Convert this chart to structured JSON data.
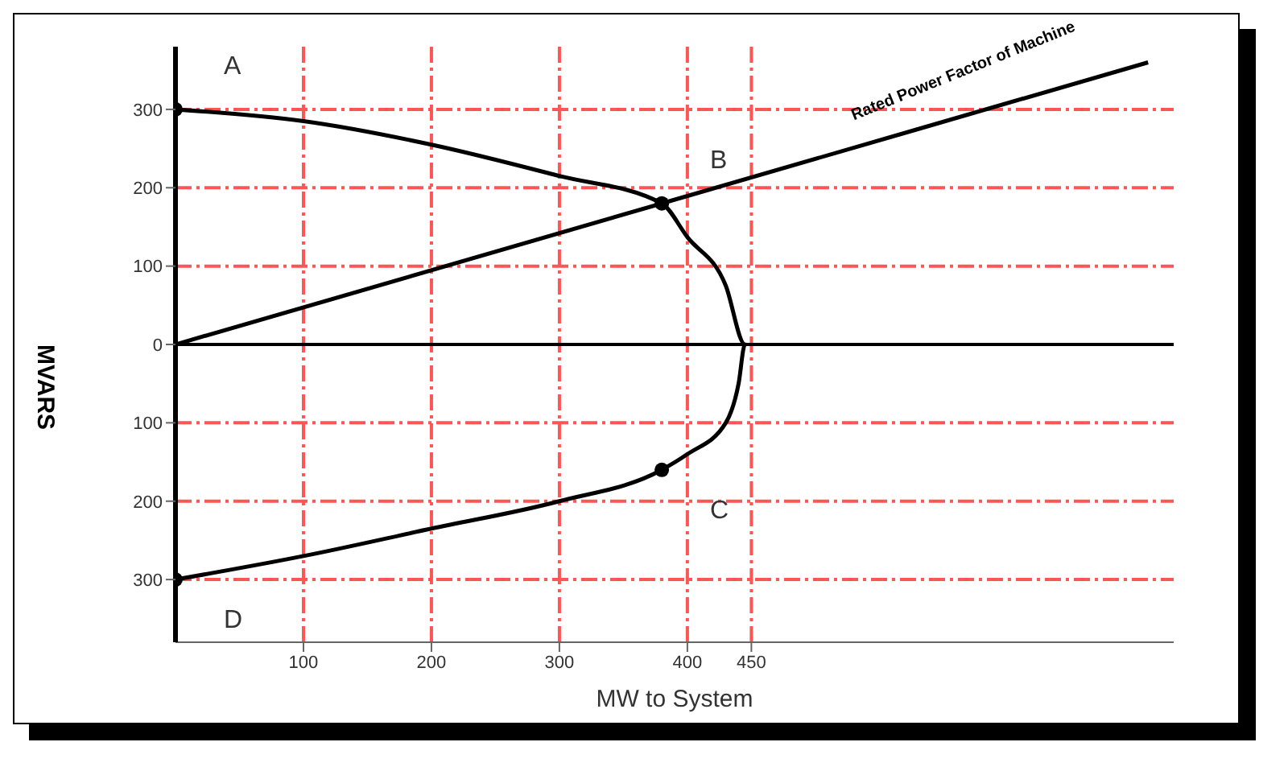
{
  "chart_data": {
    "type": "line",
    "xlabel": "MW to System",
    "ylabel": "MVARS",
    "xlim": [
      0,
      780
    ],
    "ylim": [
      -380,
      380
    ],
    "xticks": [
      100,
      200,
      300,
      400,
      450
    ],
    "yticks": [
      {
        "value": -300,
        "label": "300"
      },
      {
        "value": -200,
        "label": "200"
      },
      {
        "value": -100,
        "label": "100"
      },
      0,
      100,
      200,
      300
    ],
    "grid": true,
    "marker": "none",
    "line_style": "solid",
    "series": [
      {
        "color": "#000000",
        "x": [
          0,
          100,
          200,
          300,
          380,
          400,
          430,
          445,
          440,
          430,
          400,
          380,
          300,
          200,
          100,
          0
        ],
        "values": [
          300,
          285,
          255,
          215,
          180,
          137,
          75,
          0,
          -50,
          -100,
          -140,
          -160,
          -200,
          -235,
          -270,
          -300
        ]
      },
      {
        "color": "#000000",
        "x": [
          0,
          380,
          760
        ],
        "values": [
          0,
          180,
          360
        ]
      },
      {
        "type": "scatter",
        "marker": "circle",
        "color": "#000000",
        "x": [
          0,
          380,
          380,
          0
        ],
        "values": [
          300,
          180,
          -160,
          -300
        ]
      }
    ],
    "ref_lines": [
      {
        "axis": "y",
        "value": 0,
        "color": "#000000"
      }
    ],
    "annotations": [
      "A",
      "B",
      "C",
      "D",
      "Rated Power Factor of Machine"
    ]
  }
}
